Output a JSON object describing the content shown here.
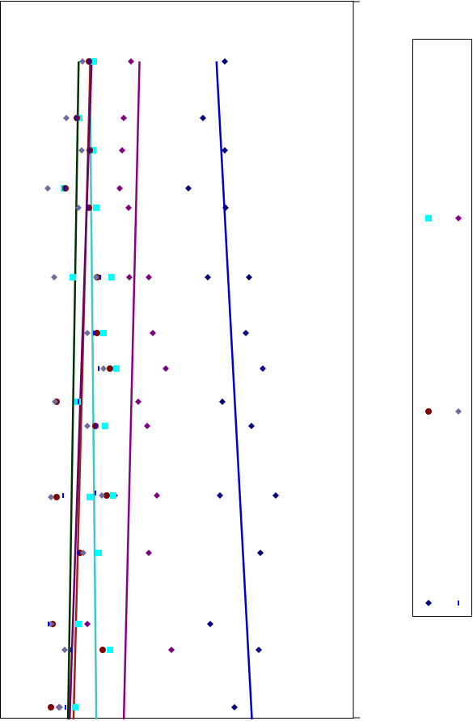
{
  "chart_data": {
    "type": "scatter",
    "xlim": [
      0,
      437
    ],
    "ylim": [
      0,
      890
    ],
    "legend": "right",
    "series": [
      {
        "color": "#000080",
        "marker": "diamond",
        "trendline_color": "#0000cc",
        "x": [
          278,
          251,
          278,
          233,
          279,
          257,
          308,
          304,
          325,
          275,
          311,
          272,
          341,
          322,
          260,
          320,
          290
        ],
        "values": [
          814,
          744,
          704,
          657,
          633,
          547,
          547,
          478,
          434,
          393,
          363,
          277,
          277,
          206,
          118,
          86,
          15
        ]
      },
      {
        "color": "#800080",
        "marker": "diamond",
        "trendline_color": "#8b008b",
        "x": [
          162,
          153,
          151,
          148,
          159,
          160,
          184,
          189,
          205,
          171,
          182,
          142,
          194,
          184,
          108,
          212,
          73
        ],
        "values": [
          814,
          744,
          704,
          657,
          633,
          547,
          547,
          478,
          434,
          393,
          363,
          277,
          277,
          206,
          118,
          86,
          15
        ]
      },
      {
        "color": "#00ffff",
        "marker": "square",
        "trendline_color": "#40c8c8",
        "x": [
          116,
          98,
          115,
          79,
          119,
          90,
          138,
          128,
          144,
          96,
          130,
          111,
          140,
          122,
          97,
          136,
          93
        ],
        "values": [
          814,
          744,
          704,
          657,
          633,
          547,
          547,
          478,
          434,
          393,
          363,
          275,
          277,
          206,
          118,
          86,
          15
        ]
      },
      {
        "color": "#800000",
        "marker": "circle",
        "trendline_color": "#a0201a",
        "x": [
          110,
          95,
          111,
          81,
          110,
          120,
          120,
          136,
          70,
          118,
          70,
          132,
          99,
          65,
          127,
          63
        ],
        "values": [
          814,
          744,
          704,
          657,
          633,
          547,
          478,
          434,
          393,
          363,
          275,
          277,
          206,
          118,
          86,
          15
        ]
      },
      {
        "color": "#6e6e9e",
        "marker": "diamond",
        "trendline_color": "#003300",
        "x": [
          102,
          82,
          101,
          59,
          97,
          67,
          119,
          108,
          128,
          68,
          108,
          63,
          126,
          103,
          63,
          80,
          74
        ],
        "values": [
          814,
          744,
          704,
          657,
          633,
          547,
          547,
          478,
          434,
          393,
          363,
          275,
          277,
          206,
          118,
          86,
          15
        ]
      },
      {
        "color": "#0000ff",
        "marker": "dash",
        "trendline_color": "#6a006a",
        "x": [
          110,
          94,
          111,
          80,
          109,
          124,
          116,
          122,
          97,
          119,
          78,
          118,
          97,
          60,
          88,
          81
        ],
        "values": [
          814,
          744,
          704,
          657,
          633,
          547,
          478,
          434,
          393,
          363,
          277,
          280,
          206,
          118,
          86,
          15
        ]
      }
    ]
  }
}
